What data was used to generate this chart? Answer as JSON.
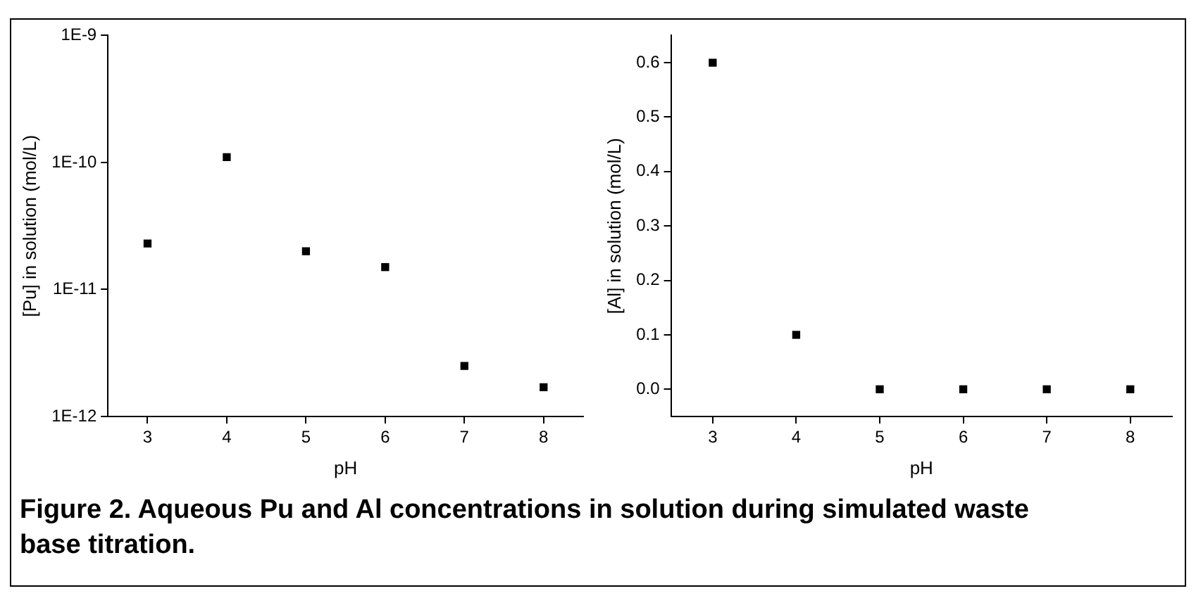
{
  "chart_data": [
    {
      "type": "scatter",
      "xlabel": "pH",
      "ylabel": "[Pu] in solution (mol/L)",
      "x": [
        3,
        4,
        5,
        6,
        7,
        8
      ],
      "series": [
        {
          "color": "#000000",
          "values": [
            2.3e-11,
            1.1e-10,
            2e-11,
            1.5e-11,
            2.5e-12,
            1.7e-12
          ]
        }
      ],
      "xlim": [
        2.5,
        8.5
      ],
      "xticks": [
        3,
        4,
        5,
        6,
        7,
        8
      ],
      "ylim": [
        1e-12,
        1e-09
      ],
      "yticks": [
        {
          "value": 1e-12,
          "label": "1E-12"
        },
        {
          "value": 1e-11,
          "label": "1E-11"
        },
        {
          "value": 1e-10,
          "label": "1E-10"
        },
        {
          "value": 1e-09,
          "label": "1E-9"
        }
      ],
      "log": "y",
      "grid": false,
      "legend": false,
      "marker": "square",
      "annotations": [
        "Figure 2. Aqueous Pu and Al concentrations in solution during simulated waste base titration."
      ]
    },
    {
      "type": "scatter",
      "xlabel": "pH",
      "ylabel": "[Al] in solution (mol/L)",
      "x": [
        3,
        4,
        5,
        6,
        7,
        8
      ],
      "series": [
        {
          "color": "#000000",
          "values": [
            0.6,
            0.1,
            0,
            0,
            0,
            0
          ]
        }
      ],
      "xlim": [
        2.5,
        8.5
      ],
      "xticks": [
        3,
        4,
        5,
        6,
        7,
        8
      ],
      "ylim": [
        -0.05,
        0.65
      ],
      "yticks": [
        {
          "value": 0,
          "label": "0.0"
        },
        {
          "value": 0.1,
          "label": "0.1"
        },
        {
          "value": 0.2,
          "label": "0.2"
        },
        {
          "value": 0.3,
          "label": "0.3"
        },
        {
          "value": 0.4,
          "label": "0.4"
        },
        {
          "value": 0.5,
          "label": "0.5"
        },
        {
          "value": 0.6,
          "label": "0.6"
        }
      ],
      "grid": false,
      "legend": false,
      "marker": "square"
    }
  ]
}
